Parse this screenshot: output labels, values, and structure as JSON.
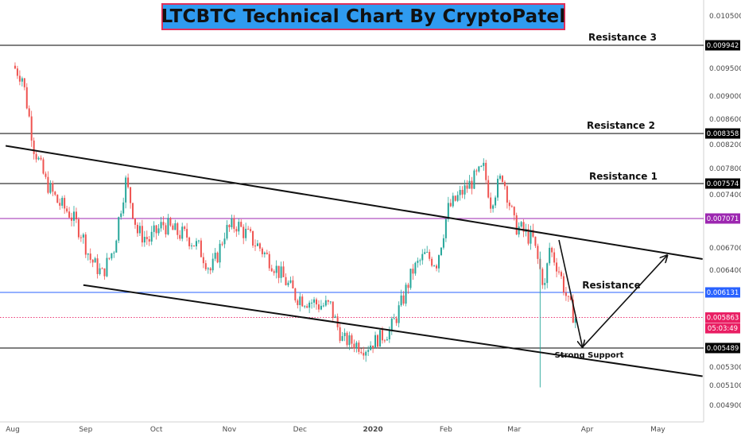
{
  "title": "LTCBTC Technical Chart By CryptoPatel",
  "colors": {
    "up_candle": "#26a69a",
    "down_candle": "#ef5350",
    "title_bg": "#2f9bf0",
    "title_border": "#e0305a",
    "resistance_lines": "#000000",
    "purple_level": "#9c27b0",
    "blue_level": "#2962ff",
    "current_price": "#e91e63"
  },
  "y_axis": {
    "ticks": [
      "0.010500",
      "0.009500",
      "0.009000",
      "0.008600",
      "0.008200",
      "0.007800",
      "0.007400",
      "0.006700",
      "0.006400",
      "0.005300",
      "0.005100",
      "0.004900"
    ],
    "range": [
      0.0048,
      0.0108
    ]
  },
  "x_axis": {
    "labels": [
      "Aug",
      "Sep",
      "Oct",
      "Nov",
      "Dec",
      "2020",
      "Feb",
      "Mar",
      "Apr",
      "May"
    ]
  },
  "chart_data": {
    "type": "candlestick",
    "title": "LTCBTC Technical Chart By CryptoPatel",
    "x_range": [
      "2019-07-29",
      "2020-05-20"
    ],
    "y_range": [
      0.0048,
      0.0108
    ],
    "levels": [
      {
        "label": "Resistance 3",
        "price": 0.009942,
        "tag": "0.009942",
        "color": "#000000"
      },
      {
        "label": "Resistance 2",
        "price": 0.008358,
        "tag": "0.008358",
        "color": "#000000"
      },
      {
        "label": "Resistance 1",
        "price": 0.007574,
        "tag": "0.007574",
        "color": "#000000"
      },
      {
        "label": "",
        "price": 0.007071,
        "tag": "0.007071",
        "color": "#9c27b0"
      },
      {
        "label": "Resistance",
        "price": 0.006131,
        "tag": "0.006131",
        "color": "#2962ff"
      },
      {
        "label": "Strong Support",
        "price": 0.005489,
        "tag": "0.005489",
        "color": "#000000"
      }
    ],
    "current_price": {
      "price": 0.005863,
      "tag": "0.005863",
      "countdown": "05:03:49"
    },
    "series": [
      {
        "name": "",
        "points": [
          {
            "date": "2019-08-01",
            "close": 0.00955
          },
          {
            "date": "2019-08-05",
            "close": 0.00935
          },
          {
            "date": "2019-08-10",
            "close": 0.00815
          },
          {
            "date": "2019-08-15",
            "close": 0.0076
          },
          {
            "date": "2019-08-20",
            "close": 0.0073
          },
          {
            "date": "2019-08-25",
            "close": 0.00715
          },
          {
            "date": "2019-08-30",
            "close": 0.0069
          },
          {
            "date": "2019-09-03",
            "close": 0.00655
          },
          {
            "date": "2019-09-08",
            "close": 0.00635
          },
          {
            "date": "2019-09-13",
            "close": 0.0067
          },
          {
            "date": "2019-09-18",
            "close": 0.0076
          },
          {
            "date": "2019-09-23",
            "close": 0.0069
          },
          {
            "date": "2019-09-28",
            "close": 0.0068
          },
          {
            "date": "2019-10-04",
            "close": 0.007
          },
          {
            "date": "2019-10-09",
            "close": 0.0069
          },
          {
            "date": "2019-10-14",
            "close": 0.00685
          },
          {
            "date": "2019-10-19",
            "close": 0.0067
          },
          {
            "date": "2019-10-24",
            "close": 0.0064
          },
          {
            "date": "2019-10-27",
            "close": 0.0066
          },
          {
            "date": "2019-10-30",
            "close": 0.0069
          },
          {
            "date": "2019-11-04",
            "close": 0.007
          },
          {
            "date": "2019-11-09",
            "close": 0.00685
          },
          {
            "date": "2019-11-14",
            "close": 0.0067
          },
          {
            "date": "2019-11-19",
            "close": 0.0065
          },
          {
            "date": "2019-11-24",
            "close": 0.0063
          },
          {
            "date": "2019-11-29",
            "close": 0.0061
          },
          {
            "date": "2019-12-04",
            "close": 0.00605
          },
          {
            "date": "2019-12-09",
            "close": 0.006
          },
          {
            "date": "2019-12-14",
            "close": 0.00598
          },
          {
            "date": "2019-12-19",
            "close": 0.0056
          },
          {
            "date": "2019-12-24",
            "close": 0.00555
          },
          {
            "date": "2019-12-29",
            "close": 0.0055
          },
          {
            "date": "2020-01-03",
            "close": 0.0056
          },
          {
            "date": "2020-01-08",
            "close": 0.0057
          },
          {
            "date": "2020-01-13",
            "close": 0.006
          },
          {
            "date": "2020-01-18",
            "close": 0.0064
          },
          {
            "date": "2020-01-23",
            "close": 0.0066
          },
          {
            "date": "2020-01-28",
            "close": 0.0065
          },
          {
            "date": "2020-02-02",
            "close": 0.0072
          },
          {
            "date": "2020-02-07",
            "close": 0.0074
          },
          {
            "date": "2020-02-12",
            "close": 0.0076
          },
          {
            "date": "2020-02-17",
            "close": 0.0078
          },
          {
            "date": "2020-02-20",
            "close": 0.0073
          },
          {
            "date": "2020-02-25",
            "close": 0.0077
          },
          {
            "date": "2020-03-01",
            "close": 0.007
          },
          {
            "date": "2020-03-05",
            "close": 0.0069
          },
          {
            "date": "2020-03-09",
            "close": 0.0068
          },
          {
            "date": "2020-03-12",
            "close": 0.0064
          },
          {
            "date": "2020-03-14",
            "close": 0.0062
          },
          {
            "date": "2020-03-16",
            "close": 0.0067
          },
          {
            "date": "2020-03-20",
            "close": 0.0064
          },
          {
            "date": "2020-03-24",
            "close": 0.006
          },
          {
            "date": "2020-03-27",
            "close": 0.00586
          }
        ]
      }
    ],
    "trendlines": [
      {
        "name": "upper-channel",
        "from": {
          "date": "2019-07-29",
          "price": 0.00818
        },
        "to": {
          "date": "2020-05-20",
          "price": 0.00655
        }
      },
      {
        "name": "lower-channel",
        "from": {
          "date": "2019-08-31",
          "price": 0.00622
        },
        "to": {
          "date": "2020-05-20",
          "price": 0.0052
        }
      }
    ],
    "projection": [
      {
        "date": "2020-03-20",
        "price": 0.0068
      },
      {
        "date": "2020-03-30",
        "price": 0.0055
      },
      {
        "date": "2020-05-05",
        "price": 0.0066
      }
    ],
    "annotations": [
      "Resistance 3",
      "Resistance 2",
      "Resistance 1",
      "Resistance",
      "Strong Support"
    ],
    "grid": false,
    "legend": "none"
  }
}
